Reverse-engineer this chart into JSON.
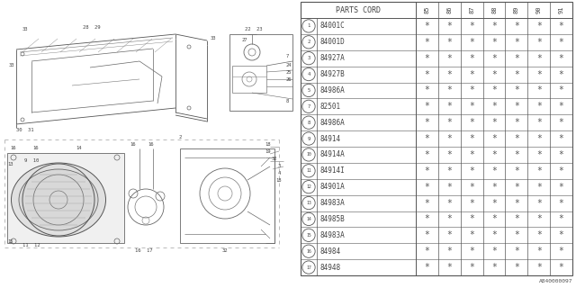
{
  "bg_color": "#ffffff",
  "header_label": "PARTS CORD",
  "year_cols": [
    "85",
    "86",
    "87",
    "88",
    "89",
    "90",
    "91"
  ],
  "parts": [
    {
      "num": 1,
      "code": "84001C"
    },
    {
      "num": 2,
      "code": "84001D"
    },
    {
      "num": 3,
      "code": "84927A"
    },
    {
      "num": 4,
      "code": "84927B"
    },
    {
      "num": 5,
      "code": "84986A"
    },
    {
      "num": 7,
      "code": "82501"
    },
    {
      "num": 8,
      "code": "84986A"
    },
    {
      "num": 9,
      "code": "84914"
    },
    {
      "num": 10,
      "code": "84914A"
    },
    {
      "num": 11,
      "code": "84914I"
    },
    {
      "num": 12,
      "code": "84901A"
    },
    {
      "num": 13,
      "code": "84983A"
    },
    {
      "num": 14,
      "code": "84985B"
    },
    {
      "num": 15,
      "code": "84983A"
    },
    {
      "num": 16,
      "code": "84984"
    },
    {
      "num": 17,
      "code": "84948"
    }
  ],
  "footer_code": "A840000097",
  "line_color": "#555555",
  "text_color": "#444444",
  "diagram_line": "#555555"
}
